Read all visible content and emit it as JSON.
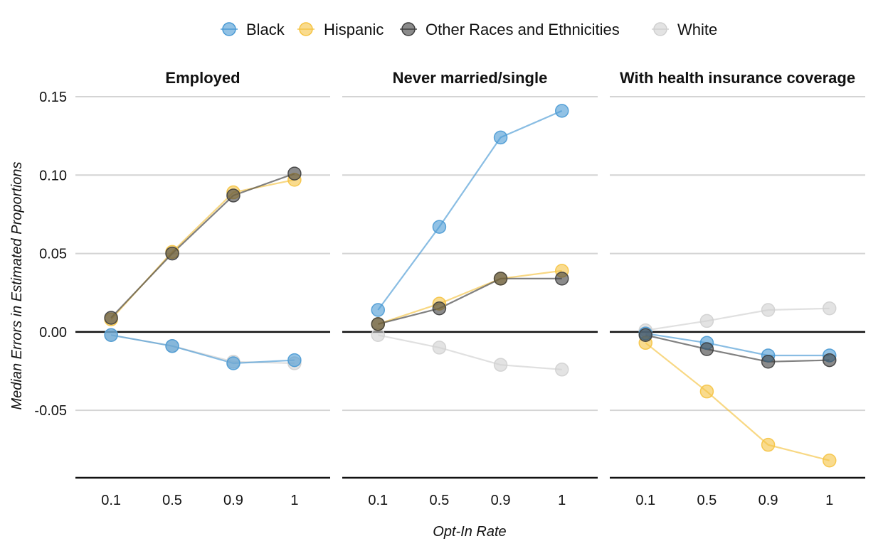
{
  "chart_data": {
    "type": "line",
    "xlabel": "Opt-In Rate",
    "ylabel": "Median Errors in Estimated Proportions",
    "categories": [
      "0.1",
      "0.5",
      "0.9",
      "1"
    ],
    "ylim": [
      -0.093,
      0.15
    ],
    "yticks": [
      -0.05,
      0.0,
      0.05,
      0.1,
      0.15
    ],
    "ytick_labels": [
      "-0.05",
      "0.00",
      "0.05",
      "0.10",
      "0.15"
    ],
    "grid": true,
    "legend_position": "top-center",
    "legend": [
      {
        "name": "Black",
        "color": "#4a9ad4"
      },
      {
        "name": "Hispanic",
        "color": "#f5c342"
      },
      {
        "name": "Other Races and Ethnicities",
        "color": "#3d3d3d"
      },
      {
        "name": "White",
        "color": "#d0d0d0"
      }
    ],
    "panels": [
      {
        "title": "Employed",
        "series": [
          {
            "name": "White",
            "values": [
              -0.002,
              -0.009,
              -0.019,
              -0.02
            ]
          },
          {
            "name": "Hispanic",
            "values": [
              0.008,
              0.051,
              0.089,
              0.097
            ]
          },
          {
            "name": "Black",
            "values": [
              -0.002,
              -0.009,
              -0.02,
              -0.018
            ]
          },
          {
            "name": "Other Races and Ethnicities",
            "values": [
              0.009,
              0.05,
              0.087,
              0.101
            ]
          }
        ]
      },
      {
        "title": "Never married/single",
        "series": [
          {
            "name": "White",
            "values": [
              -0.002,
              -0.01,
              -0.021,
              -0.024
            ]
          },
          {
            "name": "Hispanic",
            "values": [
              0.005,
              0.018,
              0.034,
              0.039
            ]
          },
          {
            "name": "Black",
            "values": [
              0.014,
              0.067,
              0.124,
              0.141
            ]
          },
          {
            "name": "Other Races and Ethnicities",
            "values": [
              0.005,
              0.015,
              0.034,
              0.034
            ]
          }
        ]
      },
      {
        "title": "With health insurance coverage",
        "series": [
          {
            "name": "White",
            "values": [
              0.001,
              0.007,
              0.014,
              0.015
            ]
          },
          {
            "name": "Hispanic",
            "values": [
              -0.007,
              -0.038,
              -0.072,
              -0.082
            ]
          },
          {
            "name": "Black",
            "values": [
              -0.001,
              -0.007,
              -0.015,
              -0.015
            ]
          },
          {
            "name": "Other Races and Ethnicities",
            "values": [
              -0.002,
              -0.011,
              -0.019,
              -0.018
            ]
          }
        ]
      }
    ]
  }
}
